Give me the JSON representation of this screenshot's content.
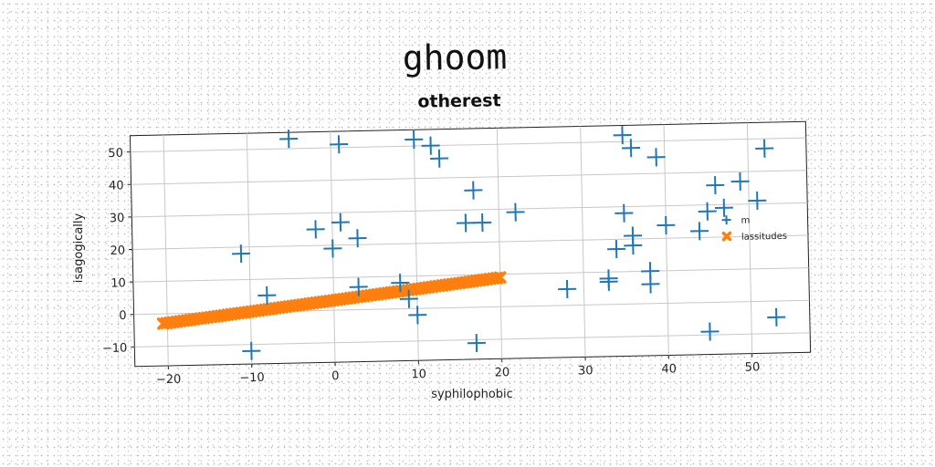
{
  "chart_data": {
    "type": "scatter",
    "title": "ghoom",
    "subtitle": "otherest",
    "xlabel": "syphilophobic",
    "ylabel": "isagogically",
    "xlim": [
      -24,
      57
    ],
    "ylim": [
      -16,
      55
    ],
    "xticks": [
      -20,
      -10,
      0,
      10,
      20,
      30,
      40,
      50
    ],
    "yticks": [
      -10,
      0,
      10,
      20,
      30,
      40,
      50
    ],
    "xtick_labels": [
      "−20",
      "−10",
      "0",
      "10",
      "20",
      "30",
      "40",
      "50"
    ],
    "ytick_labels": [
      "−10",
      "0",
      "10",
      "20",
      "30",
      "40",
      "50"
    ],
    "grid": true,
    "legend_position": "right",
    "series": [
      {
        "name": "m",
        "marker": "plus",
        "color": "#1f77b4",
        "points": [
          [
            -5,
            53
          ],
          [
            1,
            51
          ],
          [
            10,
            52
          ],
          [
            12,
            50
          ],
          [
            13,
            46
          ],
          [
            35,
            52
          ],
          [
            36,
            48
          ],
          [
            39,
            45
          ],
          [
            52,
            47
          ],
          [
            17,
            36
          ],
          [
            46,
            36
          ],
          [
            49,
            37
          ],
          [
            51,
            31
          ],
          [
            -2,
            25
          ],
          [
            1,
            27
          ],
          [
            16,
            26
          ],
          [
            18,
            26
          ],
          [
            22,
            29
          ],
          [
            35,
            28
          ],
          [
            45,
            28
          ],
          [
            47,
            29
          ],
          [
            -11,
            18
          ],
          [
            0,
            19
          ],
          [
            3,
            22
          ],
          [
            34,
            17
          ],
          [
            36,
            18
          ],
          [
            36,
            21
          ],
          [
            40,
            24
          ],
          [
            44,
            22
          ],
          [
            -8,
            5
          ],
          [
            3,
            7
          ],
          [
            8,
            8
          ],
          [
            9,
            3
          ],
          [
            10,
            -2
          ],
          [
            28,
            5
          ],
          [
            33,
            8
          ],
          [
            33,
            7
          ],
          [
            38,
            10
          ],
          [
            38,
            6
          ],
          [
            -10,
            -12
          ],
          [
            17,
            -11
          ],
          [
            45,
            -9
          ],
          [
            53,
            -5
          ]
        ]
      },
      {
        "name": "lassitudes",
        "marker": "x",
        "color": "#ff7f0e",
        "x_start": -20.5,
        "x_end": 20,
        "y_start": -3,
        "y_end": 9,
        "n_points": 100
      }
    ]
  }
}
